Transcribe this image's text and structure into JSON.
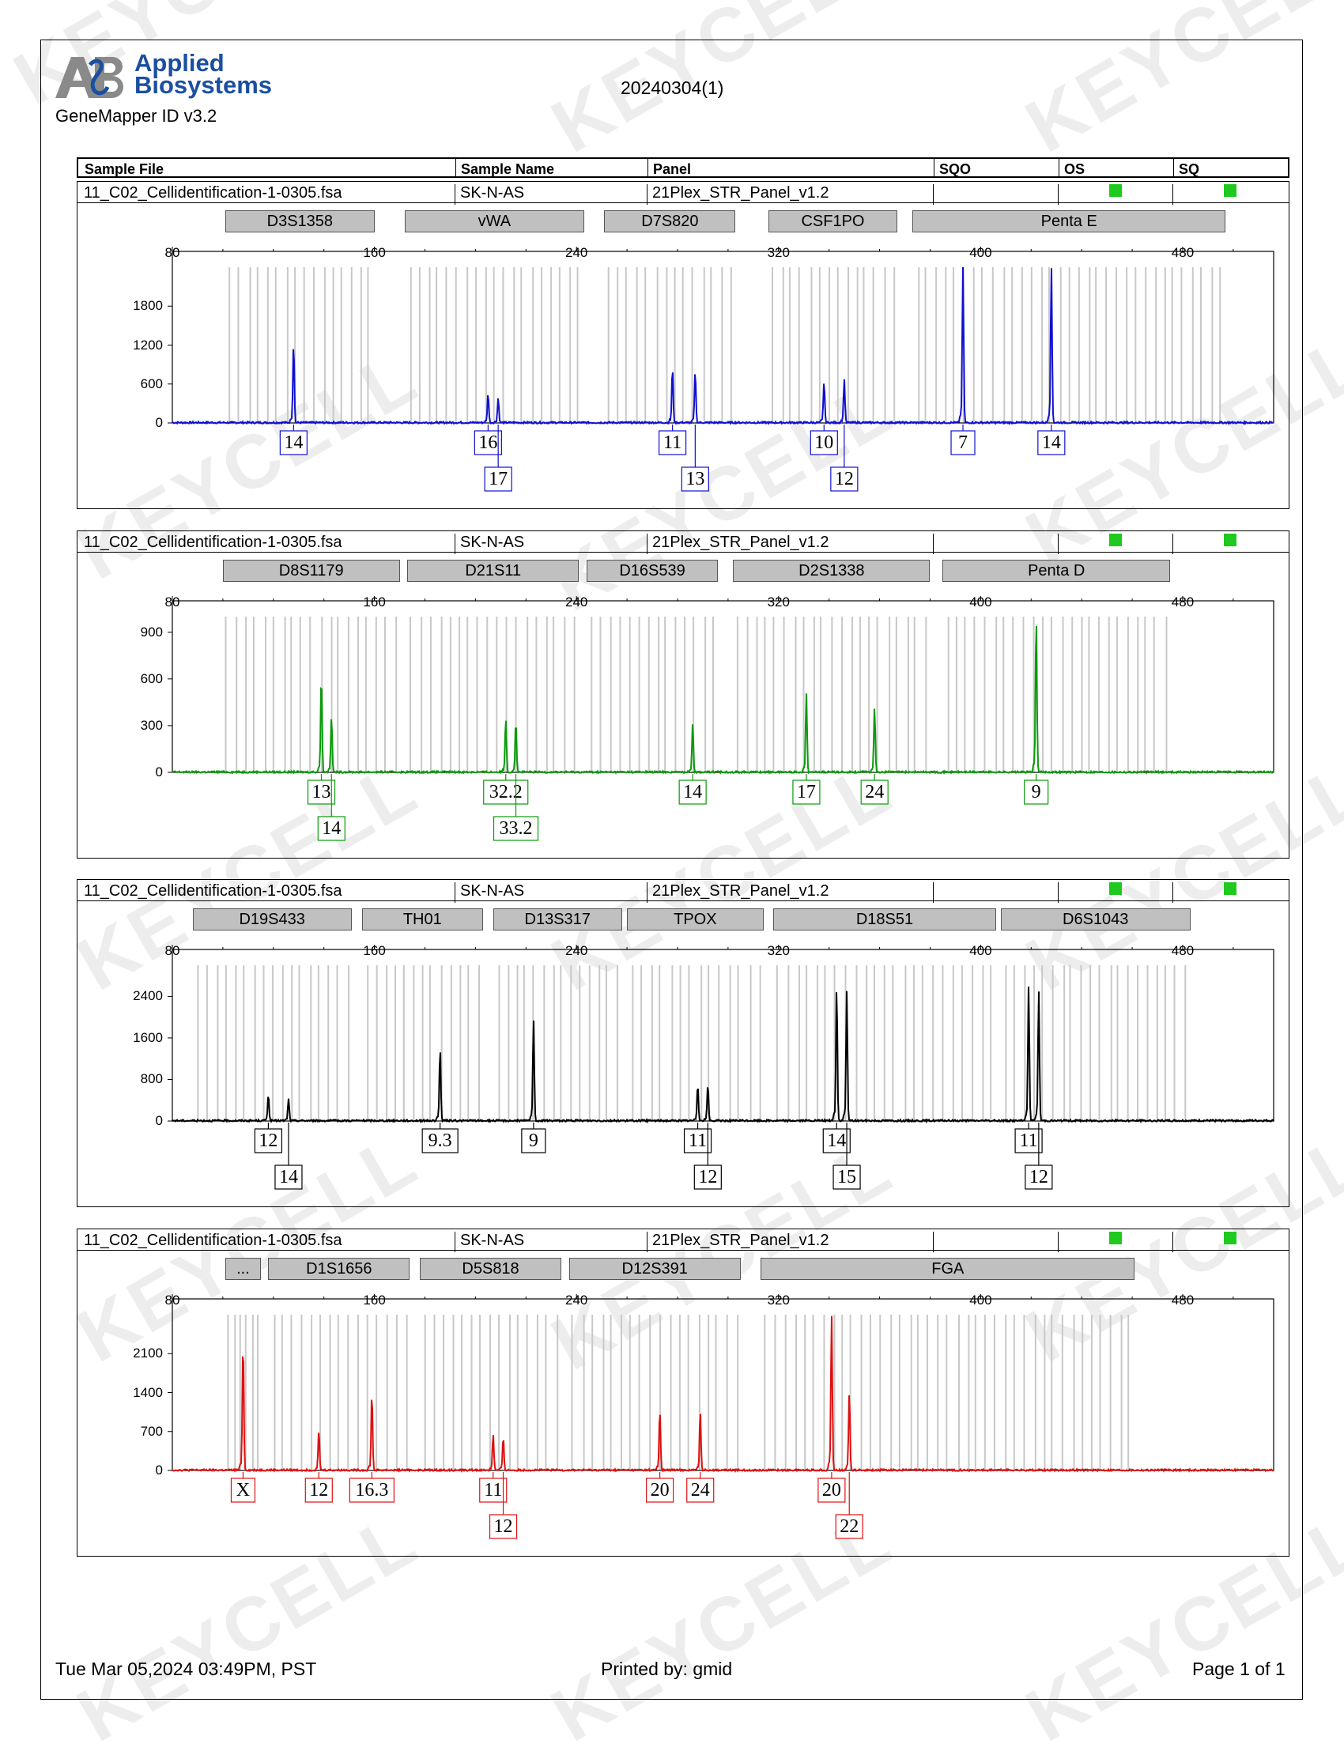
{
  "header": {
    "brand_line1": "Applied",
    "brand_line2": "Biosystems",
    "software": "GeneMapper ID v3.2",
    "title": "20240304(1)"
  },
  "columns": {
    "sample_file": "Sample File",
    "sample_name": "Sample Name",
    "panel": "Panel",
    "sqo": "SQO",
    "os": "OS",
    "sq": "SQ"
  },
  "sample": {
    "file": "11_C02_Cellidentification-1-0305.fsa",
    "name": "SK-N-AS",
    "panel": "21Plex_STR_Panel_v1.2"
  },
  "watermark": "KEYCELL",
  "footer": {
    "date": "Tue Mar 05,2024 03:49PM, PST",
    "printed_by": "Printed by: gmid",
    "page": "Page 1 of 1"
  },
  "colors": {
    "blue": "#1010d0",
    "green": "#0a9a0a",
    "black": "#000000",
    "red": "#e01010",
    "status_green": "#1fc91f"
  },
  "chart_data": [
    {
      "type": "line",
      "dye": "blue",
      "x_ticks": [
        80,
        160,
        240,
        320,
        400,
        480
      ],
      "xlim": [
        80,
        516
      ],
      "y_ticks": [
        0,
        600,
        1200,
        1800
      ],
      "ylim": [
        0,
        2400
      ],
      "markers": [
        {
          "name": "D3S1358",
          "from": 101,
          "to": 160
        },
        {
          "name": "vWA",
          "from": 172,
          "to": 243
        },
        {
          "name": "D7S820",
          "from": 251,
          "to": 303
        },
        {
          "name": "CSF1PO",
          "from": 316,
          "to": 367
        },
        {
          "name": "Penta E",
          "from": 373,
          "to": 497
        }
      ],
      "peaks": [
        {
          "x": 128,
          "y": 1230,
          "label": "14",
          "row": 1
        },
        {
          "x": 205,
          "y": 450,
          "label": "16",
          "row": 1
        },
        {
          "x": 209,
          "y": 380,
          "label": "17",
          "row": 2
        },
        {
          "x": 278,
          "y": 840,
          "label": "11",
          "row": 1
        },
        {
          "x": 287,
          "y": 790,
          "label": "13",
          "row": 2
        },
        {
          "x": 338,
          "y": 640,
          "label": "10",
          "row": 1
        },
        {
          "x": 346,
          "y": 670,
          "label": "12",
          "row": 2
        },
        {
          "x": 393,
          "y": 2400,
          "label": "7",
          "row": 1
        },
        {
          "x": 428,
          "y": 2400,
          "label": "14",
          "row": 1
        }
      ]
    },
    {
      "type": "line",
      "dye": "green",
      "x_ticks": [
        80,
        160,
        240,
        320,
        400,
        480
      ],
      "xlim": [
        80,
        516
      ],
      "y_ticks": [
        0,
        300,
        600,
        900
      ],
      "ylim": [
        0,
        1000
      ],
      "markers": [
        {
          "name": "D8S1179",
          "from": 100,
          "to": 170
        },
        {
          "name": "D21S11",
          "from": 173,
          "to": 241
        },
        {
          "name": "D16S539",
          "from": 244,
          "to": 296
        },
        {
          "name": "D2S1338",
          "from": 302,
          "to": 380
        },
        {
          "name": "Penta D",
          "from": 385,
          "to": 475
        }
      ],
      "peaks": [
        {
          "x": 139,
          "y": 620,
          "label": "13",
          "row": 1
        },
        {
          "x": 143,
          "y": 360,
          "label": "14",
          "row": 2
        },
        {
          "x": 212,
          "y": 350,
          "label": "32.2",
          "row": 1
        },
        {
          "x": 216,
          "y": 330,
          "label": "33.2",
          "row": 2
        },
        {
          "x": 286,
          "y": 310,
          "label": "14",
          "row": 1
        },
        {
          "x": 331,
          "y": 510,
          "label": "17",
          "row": 1
        },
        {
          "x": 358,
          "y": 420,
          "label": "24",
          "row": 1
        },
        {
          "x": 422,
          "y": 1000,
          "label": "9",
          "row": 1
        }
      ]
    },
    {
      "type": "line",
      "dye": "black",
      "x_ticks": [
        80,
        160,
        240,
        320,
        400,
        480
      ],
      "xlim": [
        80,
        516
      ],
      "y_ticks": [
        0,
        800,
        1600,
        2400
      ],
      "ylim": [
        0,
        3000
      ],
      "markers": [
        {
          "name": "D19S433",
          "from": 88,
          "to": 151
        },
        {
          "name": "TH01",
          "from": 155,
          "to": 203
        },
        {
          "name": "D13S317",
          "from": 207,
          "to": 258
        },
        {
          "name": "TPOX",
          "from": 260,
          "to": 314
        },
        {
          "name": "D18S51",
          "from": 318,
          "to": 406
        },
        {
          "name": "D6S1043",
          "from": 408,
          "to": 483
        }
      ],
      "peaks": [
        {
          "x": 118,
          "y": 520,
          "label": "12",
          "row": 1
        },
        {
          "x": 126,
          "y": 420,
          "label": "14",
          "row": 2
        },
        {
          "x": 186,
          "y": 1400,
          "label": "9.3",
          "row": 1
        },
        {
          "x": 223,
          "y": 1960,
          "label": "9",
          "row": 1
        },
        {
          "x": 288,
          "y": 710,
          "label": "11",
          "row": 1
        },
        {
          "x": 292,
          "y": 700,
          "label": "12",
          "row": 2
        },
        {
          "x": 343,
          "y": 2600,
          "label": "14",
          "row": 1
        },
        {
          "x": 347,
          "y": 2500,
          "label": "15",
          "row": 2
        },
        {
          "x": 419,
          "y": 2580,
          "label": "11",
          "row": 1
        },
        {
          "x": 423,
          "y": 2500,
          "label": "12",
          "row": 2
        }
      ]
    },
    {
      "type": "line",
      "dye": "red",
      "x_ticks": [
        80,
        160,
        240,
        320,
        400,
        480
      ],
      "xlim": [
        80,
        516
      ],
      "y_ticks": [
        0,
        700,
        1400,
        2100
      ],
      "ylim": [
        0,
        2800
      ],
      "markers": [
        {
          "name": "...",
          "from": 101,
          "to": 115
        },
        {
          "name": "D1S1656",
          "from": 118,
          "to": 174
        },
        {
          "name": "D5S818",
          "from": 178,
          "to": 234
        },
        {
          "name": "D12S391",
          "from": 237,
          "to": 305
        },
        {
          "name": "FGA",
          "from": 313,
          "to": 461
        }
      ],
      "peaks": [
        {
          "x": 108,
          "y": 2340,
          "label": "X",
          "row": 1
        },
        {
          "x": 138,
          "y": 700,
          "label": "12",
          "row": 1
        },
        {
          "x": 159,
          "y": 1400,
          "label": "16.3",
          "row": 1
        },
        {
          "x": 207,
          "y": 660,
          "label": "11",
          "row": 1
        },
        {
          "x": 211,
          "y": 590,
          "label": "12",
          "row": 2
        },
        {
          "x": 273,
          "y": 1080,
          "label": "20",
          "row": 1
        },
        {
          "x": 289,
          "y": 1050,
          "label": "24",
          "row": 1
        },
        {
          "x": 341,
          "y": 2800,
          "label": "20",
          "row": 1
        },
        {
          "x": 348,
          "y": 1400,
          "label": "22",
          "row": 2
        }
      ]
    }
  ]
}
